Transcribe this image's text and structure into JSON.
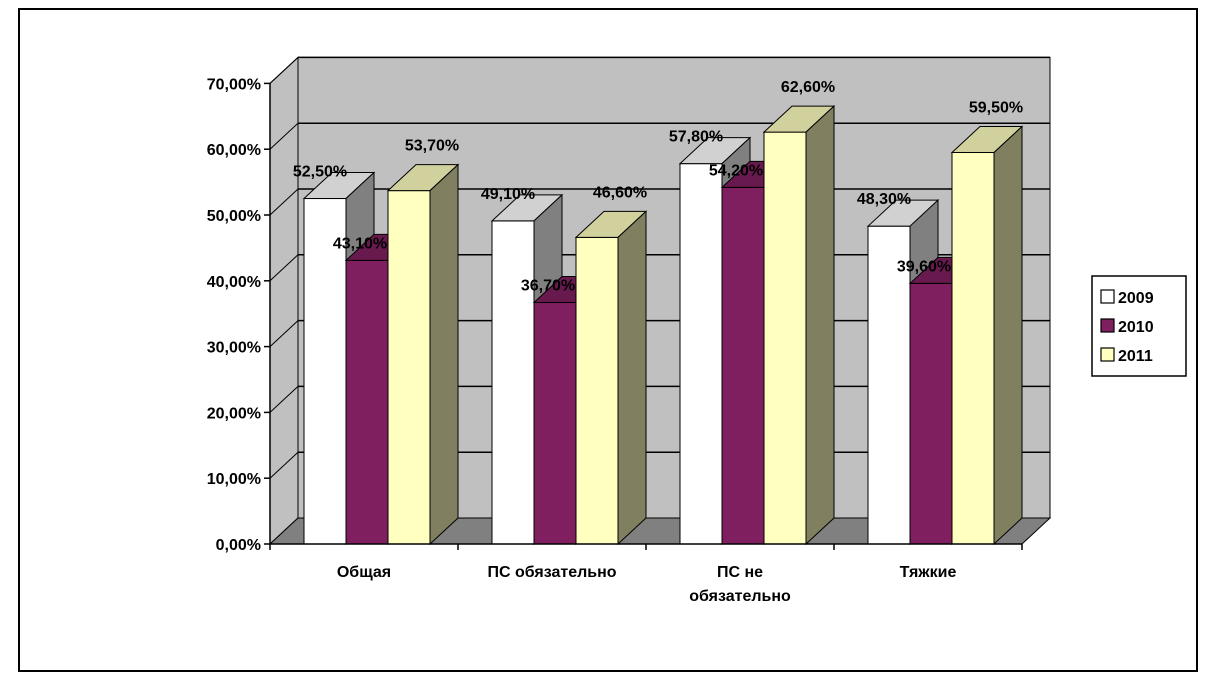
{
  "chart_data": {
    "type": "bar",
    "variant": "3d-clustered-column",
    "categories": [
      [
        "Общая"
      ],
      [
        "ПС обязательно"
      ],
      [
        "ПС не",
        "обязательно"
      ],
      [
        "Тяжкие"
      ]
    ],
    "series": [
      {
        "name": "2009",
        "values": [
          52.5,
          49.1,
          57.8,
          48.3
        ],
        "labels": [
          "52,50%",
          "49,10%",
          "57,80%",
          "48,30%"
        ],
        "color": "#ffffff"
      },
      {
        "name": "2010",
        "values": [
          43.1,
          36.7,
          54.2,
          39.6
        ],
        "labels": [
          "43,10%",
          "36,70%",
          "54,20%",
          "39,60%"
        ],
        "color": "#7f1f5f"
      },
      {
        "name": "2011",
        "values": [
          53.7,
          46.6,
          62.6,
          59.5
        ],
        "labels": [
          "53,70%",
          "46,60%",
          "62,60%",
          "59,50%"
        ],
        "color": "#ffffc0"
      }
    ],
    "y_ticks": [
      "0,00%",
      "10,00%",
      "20,00%",
      "30,00%",
      "40,00%",
      "50,00%",
      "60,00%",
      "70,00%"
    ],
    "ylim": [
      0,
      70
    ],
    "grid": true,
    "legend": "right",
    "colors": {
      "wall": "#c0c0c0",
      "floor": "#808080",
      "grid": "#000000"
    }
  }
}
